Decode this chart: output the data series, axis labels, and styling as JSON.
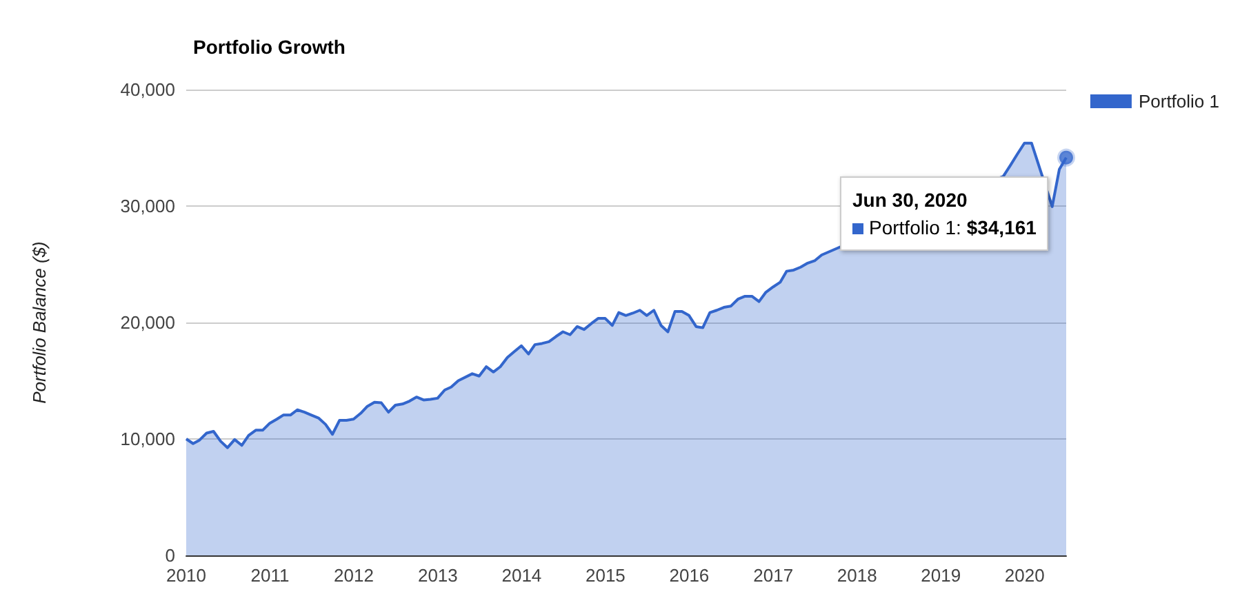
{
  "chart_data": {
    "type": "area",
    "title": "Portfolio Growth",
    "ylabel": "Portfolio Balance ($)",
    "x": [
      "2010-01-01",
      "2010-01-31",
      "2010-02-28",
      "2010-03-31",
      "2010-04-30",
      "2010-05-31",
      "2010-06-30",
      "2010-07-31",
      "2010-08-31",
      "2010-09-30",
      "2010-10-31",
      "2010-11-30",
      "2010-12-31",
      "2011-01-31",
      "2011-02-28",
      "2011-03-31",
      "2011-04-30",
      "2011-05-31",
      "2011-06-30",
      "2011-07-31",
      "2011-08-31",
      "2011-09-30",
      "2011-10-31",
      "2011-11-30",
      "2011-12-31",
      "2012-01-31",
      "2012-02-29",
      "2012-03-31",
      "2012-04-30",
      "2012-05-31",
      "2012-06-30",
      "2012-07-31",
      "2012-08-31",
      "2012-09-30",
      "2012-10-31",
      "2012-11-30",
      "2012-12-31",
      "2013-01-31",
      "2013-02-28",
      "2013-03-31",
      "2013-05-31",
      "2013-06-30",
      "2013-07-31",
      "2013-08-31",
      "2013-09-30",
      "2013-10-31",
      "2013-11-30",
      "2013-12-31",
      "2014-01-31",
      "2014-02-28",
      "2014-03-31",
      "2014-04-30",
      "2014-05-31",
      "2014-06-30",
      "2014-07-31",
      "2014-08-31",
      "2014-09-30",
      "2014-10-31",
      "2014-11-30",
      "2014-12-31",
      "2015-01-31",
      "2015-02-28",
      "2015-03-31",
      "2015-04-30",
      "2015-05-31",
      "2015-06-30",
      "2015-07-31",
      "2015-08-31",
      "2015-09-30",
      "2015-10-31",
      "2015-11-30",
      "2015-12-31",
      "2016-01-31",
      "2016-02-29",
      "2016-03-31",
      "2016-04-30",
      "2016-05-31",
      "2016-06-30",
      "2016-07-31",
      "2016-08-31",
      "2016-09-30",
      "2016-10-31",
      "2016-11-30",
      "2016-12-31",
      "2017-01-31",
      "2017-02-28",
      "2017-03-31",
      "2017-04-30",
      "2017-05-31",
      "2017-06-30",
      "2017-07-31",
      "2019-09-30",
      "2019-10-31",
      "2019-11-30",
      "2019-12-31",
      "2020-01-31",
      "2020-04-30",
      "2020-05-31",
      "2020-06-30"
    ],
    "series": [
      {
        "name": "Portfolio 1",
        "color": "#3366cc",
        "values": [
          10000,
          9600,
          9900,
          10500,
          10650,
          9800,
          9250,
          9950,
          9450,
          10300,
          10750,
          10750,
          11350,
          11700,
          12050,
          12050,
          12500,
          12300,
          12050,
          11800,
          11250,
          10400,
          11600,
          11600,
          11700,
          12200,
          12800,
          13150,
          13100,
          12300,
          12900,
          13000,
          13250,
          13600,
          13350,
          13400,
          13500,
          14200,
          14450,
          15000,
          15600,
          15400,
          16200,
          15750,
          16200,
          17000,
          17500,
          18000,
          17300,
          18100,
          18200,
          18350,
          18800,
          19200,
          18950,
          19650,
          19400,
          19900,
          20350,
          20350,
          19750,
          20850,
          20600,
          20800,
          21050,
          20600,
          21050,
          19750,
          19200,
          20950,
          20950,
          20600,
          19650,
          19550,
          20850,
          21050,
          21300,
          21400,
          22000,
          22250,
          22250,
          21800,
          22600,
          23050,
          23450,
          24400,
          24500,
          24750,
          25100,
          25300,
          25800,
          32550,
          33500,
          34450,
          35400,
          35400,
          29950,
          33150,
          34161
        ]
      }
    ],
    "xlim": [
      "2010-01-01",
      "2020-06-30"
    ],
    "xticks": [
      "2010",
      "2011",
      "2012",
      "2013",
      "2014",
      "2015",
      "2016",
      "2017",
      "2018",
      "2019",
      "2020"
    ],
    "ylim": [
      0,
      40000
    ],
    "yticks": [
      0,
      {
        "value": 10000,
        "label": "10,000"
      },
      {
        "value": 20000,
        "label": "20,000"
      },
      {
        "value": 30000,
        "label": "30,000"
      },
      {
        "value": 40000,
        "label": "40,000"
      }
    ],
    "grid": "y",
    "legend": "top right",
    "marker": "none",
    "line_style": "solid",
    "annotations": [
      {
        "text": "Jun 30, 2020\nPortfolio 1: $34,161",
        "x": "2020-06-30",
        "y": 34161
      }
    ]
  }
}
